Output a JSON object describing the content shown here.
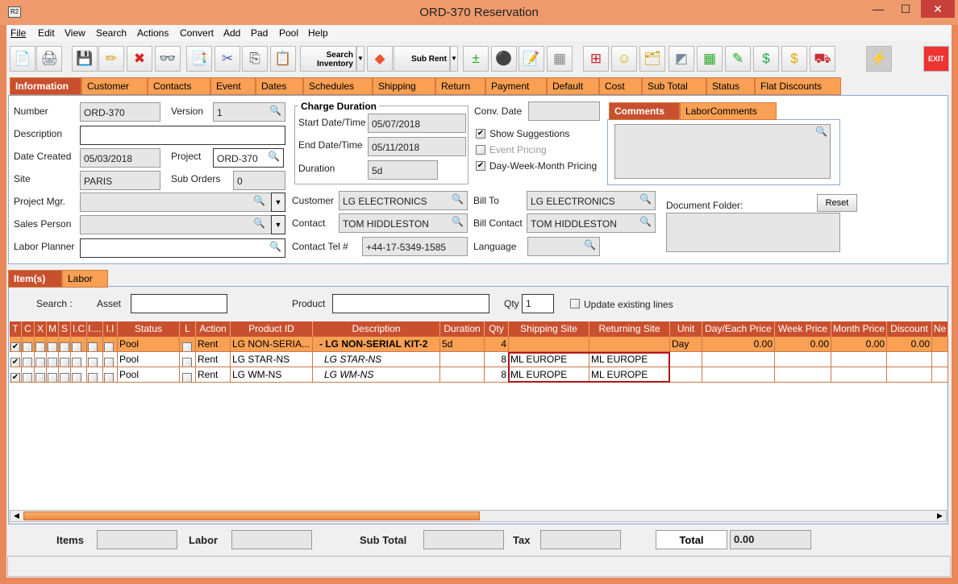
{
  "window": {
    "title": "ORD-370 Reservation",
    "app_icon": "R2",
    "minimize": "—",
    "maximize": "☐",
    "close": "✕"
  },
  "menu": [
    "File",
    "Edit",
    "View",
    "Search",
    "Actions",
    "Convert",
    "Add",
    "Pad",
    "Pool",
    "Help"
  ],
  "toolbar": {
    "search_inventory": "Search Inventory",
    "sub_rent": "Sub Rent",
    "exit": "EXIT",
    "icons": [
      "new-document-icon",
      "print-icon",
      "save-icon",
      "edit-pencil-icon",
      "delete-icon",
      "binoculars-icon",
      "copy-order-icon",
      "cut-icon",
      "copy-icon",
      "paste-icon"
    ]
  },
  "tabs": [
    "Information",
    "Customer",
    "Contacts",
    "Event",
    "Dates",
    "Schedules",
    "Shipping",
    "Return",
    "Payment",
    "Default",
    "Cost",
    "Sub Total",
    "Status",
    "Flat Discounts"
  ],
  "info": {
    "number_label": "Number",
    "number": "ORD-370",
    "version_label": "Version",
    "version": "1",
    "description_label": "Description",
    "description": "",
    "date_created_label": "Date Created",
    "date_created": "05/03/2018",
    "project_label": "Project",
    "project": "ORD-370",
    "site_label": "Site",
    "site": "PARIS",
    "sub_orders_label": "Sub Orders",
    "sub_orders": "0",
    "project_mgr_label": "Project Mgr.",
    "project_mgr": "",
    "sales_person_label": "Sales Person",
    "sales_person": "",
    "labor_planner_label": "Labor Planner",
    "labor_planner": "",
    "charge_duration_title": "Charge Duration",
    "start_label": "Start Date/Time",
    "start": "05/07/2018",
    "end_label": "End Date/Time",
    "end": "05/11/2018",
    "duration_label": "Duration",
    "duration": "5d",
    "conv_date_label": "Conv. Date",
    "conv_date": "",
    "show_suggestions": "Show Suggestions",
    "show_suggestions_checked": true,
    "event_pricing": "Event Pricing",
    "event_pricing_checked": false,
    "dwm_pricing": "Day-Week-Month Pricing",
    "dwm_pricing_checked": true,
    "customer_label": "Customer",
    "customer": "LG ELECTRONICS",
    "contact_label": "Contact",
    "contact": "TOM HIDDLESTON",
    "contact_tel_label": "Contact Tel #",
    "contact_tel": "+44-17-5349-1585",
    "bill_to_label": "Bill To",
    "bill_to": "LG ELECTRONICS",
    "bill_contact_label": "Bill Contact",
    "bill_contact": "TOM HIDDLESTON",
    "language_label": "Language",
    "language": "",
    "comments_tabs": [
      "Comments",
      "LaborComments"
    ],
    "document_folder_label": "Document Folder:",
    "reset": "Reset"
  },
  "items_tabs": [
    "Item(s)",
    "Labor"
  ],
  "search": {
    "label": "Search :",
    "asset_label": "Asset",
    "asset": "",
    "product_label": "Product",
    "product": "",
    "qty_label": "Qty",
    "qty": "1",
    "update_label": "Update existing lines",
    "update_checked": false
  },
  "table": {
    "columns": [
      "T",
      "C",
      "X",
      "M",
      "S",
      "I.C",
      "I....",
      "I.I",
      "Status",
      "L",
      "Action",
      "Product ID",
      "Description",
      "Duration",
      "Qty",
      "Shipping Site",
      "Returning Site",
      "Unit",
      "Day/Each Price",
      "Week Price",
      "Month Price",
      "Discount",
      "Ne"
    ],
    "rows": [
      {
        "checks": [
          true,
          false,
          false,
          false,
          false,
          false,
          false,
          false
        ],
        "status": "Pool",
        "l": false,
        "action": "Rent",
        "product_id": "LG NON-SERIA...",
        "description": "-  LG NON-SERIAL KIT-2",
        "duration": "5d",
        "qty": "4",
        "shipping_site": "",
        "returning_site": "",
        "unit": "Day",
        "day_price": "0.00",
        "week_price": "0.00",
        "month_price": "0.00",
        "discount": "0.00",
        "kit": true
      },
      {
        "checks": [
          true,
          false,
          false,
          false,
          false,
          false,
          false,
          false
        ],
        "status": "Pool",
        "l": false,
        "action": "Rent",
        "product_id": "LG STAR-NS",
        "description": "LG STAR-NS",
        "duration": "",
        "qty": "8",
        "shipping_site": "ML EUROPE",
        "returning_site": "ML EUROPE",
        "unit": "",
        "day_price": "",
        "week_price": "",
        "month_price": "",
        "discount": "",
        "kit": false
      },
      {
        "checks": [
          true,
          false,
          false,
          false,
          false,
          false,
          false,
          false
        ],
        "status": "Pool",
        "l": false,
        "action": "Rent",
        "product_id": "LG WM-NS",
        "description": "LG WM-NS",
        "duration": "",
        "qty": "8",
        "shipping_site": "ML EUROPE",
        "returning_site": "ML EUROPE",
        "unit": "",
        "day_price": "",
        "week_price": "",
        "month_price": "",
        "discount": "",
        "kit": false
      }
    ]
  },
  "footer": {
    "items_label": "Items",
    "items": "",
    "labor_label": "Labor",
    "labor": "",
    "subtotal_label": "Sub Total",
    "subtotal": "",
    "tax_label": "Tax",
    "tax": "",
    "total_label": "Total",
    "total": "0.00"
  },
  "colors": {
    "accent": "#C9502E",
    "tab": "#F9A054",
    "frame": "#E9885A"
  }
}
